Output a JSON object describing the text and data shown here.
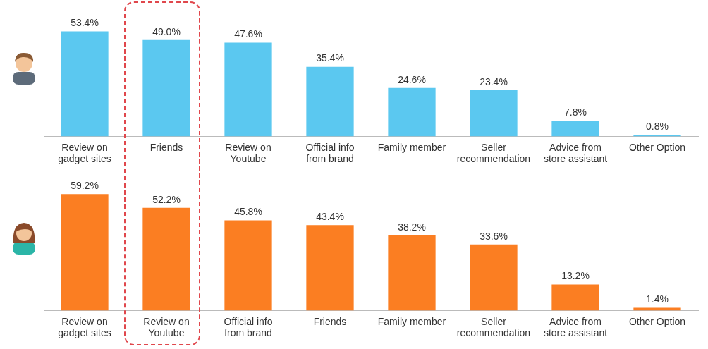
{
  "chart_data": [
    {
      "type": "bar",
      "categories": [
        "Review on gadget sites",
        "Friends",
        "Review on Youtube",
        "Official info from brand",
        "Family member",
        "Seller recommendation",
        "Advice from store assistant",
        "Other Option"
      ],
      "values": [
        53.4,
        49.0,
        47.6,
        35.4,
        24.6,
        23.4,
        7.8,
        0.8
      ],
      "value_labels": [
        "53.4%",
        "49.0%",
        "47.6%",
        "35.4%",
        "24.6%",
        "23.4%",
        "7.8%",
        "0.8%"
      ],
      "color": "#5bc8f0",
      "legend": false,
      "grid": false,
      "tick_labels": "x"
    },
    {
      "type": "bar",
      "categories": [
        "Review on gadget sites",
        "Review on Youtube",
        "Official info from brand",
        "Friends",
        "Family member",
        "Seller recommendation",
        "Advice from store assistant",
        "Other Option"
      ],
      "values": [
        59.2,
        52.2,
        45.8,
        43.4,
        38.2,
        33.6,
        13.2,
        1.4
      ],
      "value_labels": [
        "59.2%",
        "52.2%",
        "45.8%",
        "43.4%",
        "38.2%",
        "33.6%",
        "13.2%",
        "1.4%"
      ],
      "color": "#fb7e22",
      "legend": false,
      "grid": false,
      "tick_labels": "x"
    }
  ]
}
